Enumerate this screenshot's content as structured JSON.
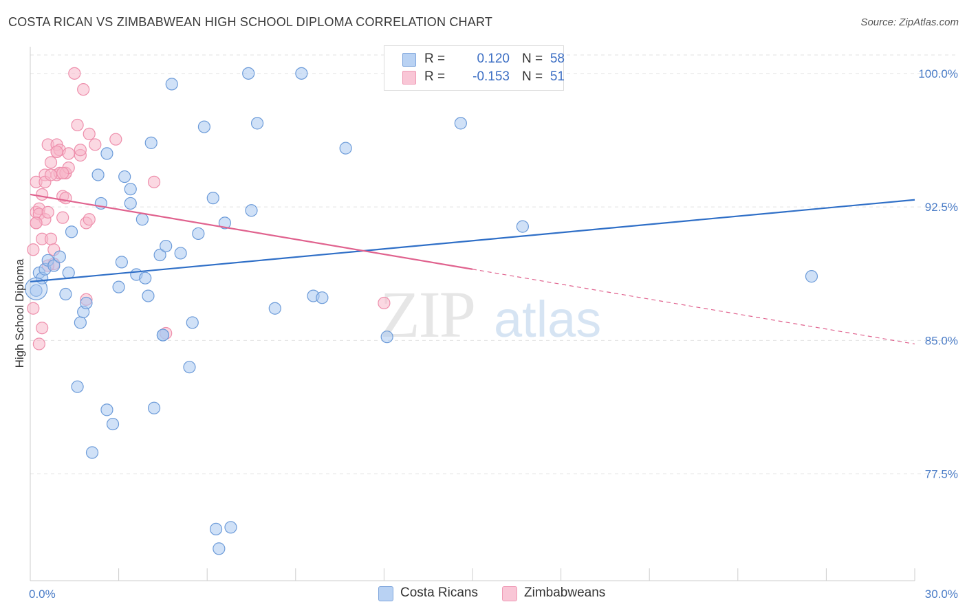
{
  "title": "COSTA RICAN VS ZIMBABWEAN HIGH SCHOOL DIPLOMA CORRELATION CHART",
  "source": "Source: ZipAtlas.com",
  "watermark": {
    "zip": "ZIP",
    "atlas": "atlas"
  },
  "colors": {
    "blue_fill": "#a9c8f0",
    "blue_stroke": "#6c9bd9",
    "blue_line": "#2f6fc7",
    "pink_fill": "#f7b8cb",
    "pink_stroke": "#ee8fac",
    "pink_line": "#e0628e",
    "grid": "#e2e2e2",
    "axis": "#cccccc",
    "tick_text": "#4a7cc7"
  },
  "legend": {
    "rows": [
      {
        "r_label": "R =",
        "r_value": "0.120",
        "n_label": "N =",
        "n_value": "58"
      },
      {
        "r_label": "R =",
        "r_value": "-0.153",
        "n_label": "N =",
        "n_value": "51"
      }
    ]
  },
  "bottom_legend": {
    "series_a": "Costa Ricans",
    "series_b": "Zimbabweans"
  },
  "chart_data": {
    "type": "scatter",
    "title": "COSTA RICAN VS ZIMBABWEAN HIGH SCHOOL DIPLOMA CORRELATION CHART",
    "xlabel": "",
    "ylabel": "High School Diploma",
    "xlim": [
      0,
      30
    ],
    "ylim": [
      71.5,
      101.5
    ],
    "x_tick_labels": [
      "0.0%",
      "30.0%"
    ],
    "y_ticks": [
      77.5,
      85.0,
      92.5,
      100.0
    ],
    "y_tick_labels": [
      "77.5%",
      "85.0%",
      "92.5%",
      "100.0%"
    ],
    "grid": true,
    "legend_position": "top-center",
    "series": [
      {
        "name": "Costa Ricans",
        "r": 0.12,
        "n": 58,
        "trend": {
          "x": [
            0,
            30
          ],
          "y": [
            88.3,
            92.9
          ],
          "solid_to_x": 30
        },
        "points": [
          [
            0.2,
            87.8
          ],
          [
            0.3,
            88.8
          ],
          [
            0.4,
            88.5
          ],
          [
            0.5,
            89.0
          ],
          [
            0.6,
            89.5
          ],
          [
            0.8,
            89.2
          ],
          [
            1.0,
            89.7
          ],
          [
            1.2,
            87.6
          ],
          [
            1.3,
            88.8
          ],
          [
            1.4,
            91.1
          ],
          [
            1.6,
            82.4
          ],
          [
            1.7,
            86.0
          ],
          [
            1.8,
            86.6
          ],
          [
            1.9,
            87.1
          ],
          [
            2.1,
            78.7
          ],
          [
            2.3,
            94.3
          ],
          [
            2.4,
            92.7
          ],
          [
            2.6,
            95.5
          ],
          [
            2.6,
            81.1
          ],
          [
            2.8,
            80.3
          ],
          [
            3.0,
            88.0
          ],
          [
            3.1,
            89.4
          ],
          [
            3.2,
            94.2
          ],
          [
            3.4,
            93.5
          ],
          [
            3.4,
            92.7
          ],
          [
            3.6,
            88.7
          ],
          [
            3.8,
            91.8
          ],
          [
            3.9,
            88.5
          ],
          [
            4.0,
            87.5
          ],
          [
            4.1,
            96.1
          ],
          [
            4.2,
            81.2
          ],
          [
            4.4,
            89.8
          ],
          [
            4.5,
            85.3
          ],
          [
            4.6,
            90.3
          ],
          [
            4.8,
            99.4
          ],
          [
            5.1,
            89.9
          ],
          [
            5.4,
            83.5
          ],
          [
            5.5,
            86.0
          ],
          [
            5.7,
            91.0
          ],
          [
            5.9,
            97.0
          ],
          [
            6.2,
            93.0
          ],
          [
            6.3,
            74.4
          ],
          [
            6.4,
            73.3
          ],
          [
            6.6,
            91.6
          ],
          [
            6.8,
            74.5
          ],
          [
            7.4,
            100.0
          ],
          [
            7.5,
            92.3
          ],
          [
            7.7,
            97.2
          ],
          [
            8.3,
            86.8
          ],
          [
            9.2,
            100.0
          ],
          [
            9.6,
            87.5
          ],
          [
            9.9,
            87.4
          ],
          [
            10.7,
            95.8
          ],
          [
            12.1,
            85.2
          ],
          [
            14.6,
            97.2
          ],
          [
            16.7,
            91.4
          ],
          [
            26.5,
            88.6
          ],
          [
            4.5,
            85.3
          ]
        ]
      },
      {
        "name": "Zimbabweans",
        "r": -0.153,
        "n": 51,
        "trend": {
          "x": [
            0,
            30
          ],
          "y": [
            93.2,
            84.8
          ],
          "solid_to_x": 15
        },
        "points": [
          [
            0.1,
            86.8
          ],
          [
            0.1,
            90.1
          ],
          [
            0.2,
            91.6
          ],
          [
            0.2,
            93.9
          ],
          [
            0.2,
            92.2
          ],
          [
            0.3,
            92.4
          ],
          [
            0.3,
            84.8
          ],
          [
            0.3,
            92.1
          ],
          [
            0.4,
            85.7
          ],
          [
            0.4,
            90.7
          ],
          [
            0.4,
            93.2
          ],
          [
            0.5,
            94.3
          ],
          [
            0.5,
            91.8
          ],
          [
            0.6,
            96.0
          ],
          [
            0.6,
            92.2
          ],
          [
            0.7,
            95.0
          ],
          [
            0.7,
            90.7
          ],
          [
            0.8,
            89.3
          ],
          [
            0.8,
            90.1
          ],
          [
            0.9,
            95.6
          ],
          [
            0.9,
            96.0
          ],
          [
            0.9,
            94.3
          ],
          [
            0.5,
            93.9
          ],
          [
            1.0,
            94.4
          ],
          [
            1.0,
            95.7
          ],
          [
            1.1,
            91.9
          ],
          [
            1.1,
            93.1
          ],
          [
            1.2,
            94.4
          ],
          [
            1.2,
            94.4
          ],
          [
            1.2,
            93.0
          ],
          [
            1.3,
            95.5
          ],
          [
            1.3,
            94.7
          ],
          [
            1.5,
            100.0
          ],
          [
            1.6,
            97.1
          ],
          [
            1.7,
            95.4
          ],
          [
            1.7,
            95.7
          ],
          [
            1.8,
            99.1
          ],
          [
            1.9,
            87.3
          ],
          [
            1.9,
            91.6
          ],
          [
            2.0,
            91.8
          ],
          [
            2.0,
            96.6
          ],
          [
            2.2,
            96.0
          ],
          [
            2.9,
            96.3
          ],
          [
            4.2,
            93.9
          ],
          [
            4.6,
            85.4
          ],
          [
            12.0,
            87.1
          ],
          [
            0.6,
            89.2
          ],
          [
            0.7,
            94.3
          ],
          [
            0.9,
            95.6
          ],
          [
            1.1,
            94.4
          ],
          [
            0.2,
            91.6
          ]
        ]
      }
    ]
  }
}
